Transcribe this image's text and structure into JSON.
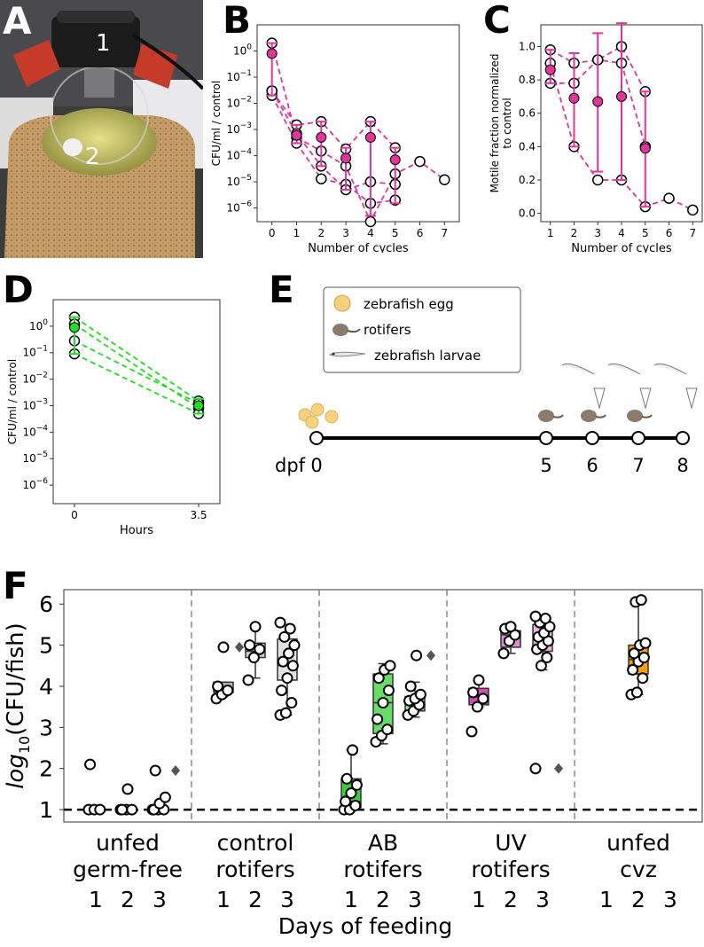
{
  "panel_labels": {
    "a": "A",
    "b": "B",
    "c": "C",
    "d": "D",
    "e": "E",
    "f": "F"
  },
  "photo": {
    "marker1": "1",
    "marker2": "2"
  },
  "chart_data": [
    {
      "id": "B",
      "type": "line",
      "scale": "log",
      "xlabel": "Number of cycles",
      "ylabel": "CFU/ml / control",
      "xticks": [
        0,
        1,
        2,
        3,
        4,
        5,
        6,
        7
      ],
      "yticks": [
        {
          "v": 1,
          "l": "10^0"
        },
        {
          "v": 0.1,
          "l": "10^-1"
        },
        {
          "v": 0.01,
          "l": "10^-2"
        },
        {
          "v": 0.001,
          "l": "10^-3"
        },
        {
          "v": 0.0001,
          "l": "10^-4"
        },
        {
          "v": 1e-05,
          "l": "10^-5"
        },
        {
          "v": 1e-06,
          "l": "10^-6"
        }
      ],
      "xlim": [
        -0.6,
        7.6
      ],
      "ylim": [
        3e-07,
        10
      ],
      "color": "#e0359a",
      "series": [
        {
          "x": [
            0,
            1,
            2,
            3,
            4,
            5,
            6,
            7
          ],
          "values": [
            2.0,
            0.0005,
            0.00015,
            4e-05,
            3e-07,
            2e-05,
            6e-05,
            1.2e-05
          ]
        },
        {
          "x": [
            0,
            1,
            2,
            3,
            4,
            5
          ],
          "values": [
            0.03,
            0.0015,
            0.002,
            0.00018,
            0.002,
            0.0002
          ]
        },
        {
          "x": [
            0,
            1,
            2,
            3,
            4,
            5
          ],
          "values": [
            0.02,
            0.0003,
            1.3e-05,
            8e-06,
            1.5e-06,
            2e-06
          ]
        },
        {
          "x": [
            0,
            1,
            2,
            3,
            4,
            5
          ],
          "values": [
            0.03,
            0.0007,
            4e-05,
            5e-06,
            1e-05,
            8e-06
          ]
        }
      ],
      "means": {
        "x": [
          0,
          1,
          2,
          3,
          4,
          5
        ],
        "values": [
          0.8,
          0.0006,
          0.0005,
          8e-05,
          0.0005,
          7e-05
        ],
        "lo": [
          0.02,
          0.0003,
          4e-05,
          5e-06,
          5e-07,
          1.5e-06
        ],
        "hi": [
          2,
          0.0015,
          0.002,
          0.0002,
          0.002,
          0.0002
        ]
      }
    },
    {
      "id": "C",
      "type": "line",
      "scale": "linear",
      "xlabel": "Number of cycles",
      "ylabel": "Motile fraction normalized to control",
      "ylabel_lines": [
        "Motile fraction normalized",
        "to control"
      ],
      "xticks": [
        1,
        2,
        3,
        4,
        5,
        6,
        7
      ],
      "yticks": [
        {
          "v": 0,
          "l": "0.0"
        },
        {
          "v": 0.2,
          "l": "0.2"
        },
        {
          "v": 0.4,
          "l": "0.4"
        },
        {
          "v": 0.6,
          "l": "0.6"
        },
        {
          "v": 0.8,
          "l": "0.8"
        },
        {
          "v": 1.0,
          "l": "1.0"
        }
      ],
      "xlim": [
        0.6,
        7.4
      ],
      "ylim": [
        -0.05,
        1.13
      ],
      "color": "#e0359a",
      "series": [
        {
          "x": [
            1,
            2,
            3,
            4,
            5,
            6,
            7
          ],
          "values": [
            0.9,
            0.4,
            0.2,
            0.2,
            0.04,
            0.09,
            0.02
          ]
        },
        {
          "x": [
            1,
            2,
            3,
            4,
            5
          ],
          "values": [
            0.98,
            0.9,
            0.92,
            1.0,
            0.73
          ]
        },
        {
          "x": [
            1,
            2,
            3,
            4,
            5
          ],
          "values": [
            0.78,
            0.78,
            0.92,
            0.9,
            0.4
          ]
        }
      ],
      "means": {
        "x": [
          1,
          2,
          3,
          4,
          5
        ],
        "values": [
          0.86,
          0.69,
          0.67,
          0.7,
          0.39
        ],
        "lo": [
          0.78,
          0.4,
          0.25,
          0.2,
          0.04
        ],
        "hi": [
          0.98,
          0.96,
          1.08,
          1.14,
          0.73
        ]
      }
    },
    {
      "id": "D",
      "type": "line",
      "scale": "log",
      "xlabel": "Hours",
      "ylabel": "CFU/ml / control",
      "xticks": [
        {
          "v": 0,
          "l": "0"
        },
        {
          "v": 3.5,
          "l": "3.5"
        }
      ],
      "yticks": [
        {
          "v": 1,
          "l": "10^0"
        },
        {
          "v": 0.1,
          "l": "10^-1"
        },
        {
          "v": 0.01,
          "l": "10^-2"
        },
        {
          "v": 0.001,
          "l": "10^-3"
        },
        {
          "v": 0.0001,
          "l": "10^-4"
        },
        {
          "v": 1e-05,
          "l": "10^-5"
        },
        {
          "v": 1e-06,
          "l": "10^-6"
        }
      ],
      "xlim": [
        -0.6,
        4.1
      ],
      "ylim": [
        2e-07,
        10
      ],
      "color": "#22dd22",
      "series": [
        {
          "x": [
            0,
            3.5
          ],
          "values": [
            2.2,
            0.0015
          ]
        },
        {
          "x": [
            0,
            3.5
          ],
          "values": [
            1.2,
            0.0008
          ]
        },
        {
          "x": [
            0,
            3.5
          ],
          "values": [
            0.28,
            0.0012
          ]
        },
        {
          "x": [
            0,
            3.5
          ],
          "values": [
            0.09,
            0.0005
          ]
        }
      ],
      "means": {
        "x": [
          0,
          3.5
        ],
        "values": [
          0.9,
          0.001
        ],
        "lo": [
          0.09,
          0.0005
        ],
        "hi": [
          2.2,
          0.0018
        ]
      }
    },
    {
      "id": "F",
      "type": "box",
      "ylabel": "log10(CFU/fish)",
      "xlabel": "Days of feeding",
      "ylim": [
        0.7,
        6.35
      ],
      "yticks": [
        1,
        2,
        3,
        4,
        5,
        6
      ],
      "group_labels": [
        [
          "unfed",
          "germ-free"
        ],
        [
          "control",
          "rotifers"
        ],
        [
          "AB",
          "rotifers"
        ],
        [
          "UV",
          "rotifers"
        ],
        [
          "unfed",
          "cvz"
        ]
      ],
      "day_labels": [
        "1",
        "2",
        "3"
      ],
      "boxes": [
        {
          "g": 0,
          "d": 1,
          "q1": 1,
          "med": 1,
          "q3": 1,
          "wlo": 1,
          "whi": 1,
          "fliers": [],
          "pts": [
            1,
            1,
            1,
            2.1
          ],
          "color": "#9e9e9e"
        },
        {
          "g": 0,
          "d": 2,
          "q1": 1,
          "med": 1,
          "q3": 1,
          "wlo": 1,
          "whi": 1,
          "fliers": [],
          "pts": [
            1,
            1,
            1,
            1,
            1.5
          ],
          "color": "#9e9e9e"
        },
        {
          "g": 0,
          "d": 3,
          "q1": 1,
          "med": 1,
          "q3": 1,
          "wlo": 1,
          "whi": 1,
          "fliers": [
            1.95
          ],
          "pts": [
            1,
            1,
            1,
            1,
            1.15,
            1.3,
            1.95
          ],
          "color": "#9e9e9e"
        },
        {
          "g": 1,
          "d": 1,
          "q1": 3.85,
          "med": 3.95,
          "q3": 4.1,
          "wlo": 3.75,
          "whi": 4.1,
          "fliers": [
            4.95
          ],
          "pts": [
            3.7,
            3.8,
            3.9,
            4.0,
            4.95
          ],
          "color": "#b8b8b8"
        },
        {
          "g": 1,
          "d": 2,
          "q1": 4.7,
          "med": 4.85,
          "q3": 5.05,
          "wlo": 4.2,
          "whi": 5.45,
          "fliers": [],
          "pts": [
            4.15,
            4.7,
            4.9,
            5.0,
            5.45
          ],
          "color": "#d2d2d2"
        },
        {
          "g": 1,
          "d": 3,
          "q1": 4.15,
          "med": 4.5,
          "q3": 5.15,
          "wlo": 3.3,
          "whi": 5.5,
          "fliers": [],
          "pts": [
            3.3,
            3.35,
            3.6,
            3.9,
            4.2,
            4.5,
            4.6,
            4.8,
            5.0,
            5.2,
            5.4,
            5.55
          ],
          "color": "#e2e2e2"
        },
        {
          "g": 2,
          "d": 1,
          "q1": 1.05,
          "med": 1.2,
          "q3": 1.75,
          "wlo": 1,
          "whi": 2.45,
          "fliers": [],
          "pts": [
            1,
            1,
            1.1,
            1.2,
            1.4,
            1.6,
            1.75,
            2.45
          ],
          "color": "#3ecc3e"
        },
        {
          "g": 2,
          "d": 2,
          "q1": 2.85,
          "med": 3.6,
          "q3": 4.3,
          "wlo": 2.6,
          "whi": 4.55,
          "fliers": [],
          "pts": [
            2.65,
            2.8,
            2.95,
            3.2,
            3.6,
            3.9,
            4.2,
            4.4,
            4.5
          ],
          "color": "#66dd66"
        },
        {
          "g": 2,
          "d": 3,
          "q1": 3.4,
          "med": 3.6,
          "q3": 3.75,
          "wlo": 3.25,
          "whi": 4.1,
          "fliers": [
            4.75
          ],
          "pts": [
            3.3,
            3.4,
            3.55,
            3.65,
            3.7,
            3.8,
            4.0,
            4.75
          ],
          "color": "#99e699"
        },
        {
          "g": 3,
          "d": 1,
          "q1": 3.55,
          "med": 3.75,
          "q3": 3.95,
          "wlo": 3.5,
          "whi": 4.15,
          "fliers": [],
          "pts": [
            2.9,
            3.5,
            3.7,
            3.85,
            4.15
          ],
          "color": "#d548b8"
        },
        {
          "g": 3,
          "d": 2,
          "q1": 4.95,
          "med": 5.25,
          "q3": 5.35,
          "wlo": 4.8,
          "whi": 5.45,
          "fliers": [],
          "pts": [
            4.8,
            5.1,
            5.25,
            5.4,
            5.45
          ],
          "color": "#e08ad0"
        },
        {
          "g": 3,
          "d": 3,
          "q1": 4.85,
          "med": 5.15,
          "q3": 5.5,
          "wlo": 4.4,
          "whi": 5.7,
          "fliers": [
            2.0
          ],
          "pts": [
            2.0,
            4.5,
            4.7,
            4.9,
            5.0,
            5.1,
            5.2,
            5.3,
            5.45,
            5.55,
            5.65,
            5.7
          ],
          "color": "#f0b0e4"
        },
        {
          "g": 4,
          "d": 2,
          "q1": 4.3,
          "med": 4.65,
          "q3": 5.0,
          "wlo": 3.8,
          "whi": 6.1,
          "fliers": [],
          "pts": [
            3.8,
            3.85,
            4.2,
            4.4,
            4.6,
            4.7,
            4.8,
            5.0,
            5.05,
            6.05,
            6.1
          ],
          "color": "#f5a00a"
        }
      ]
    }
  ],
  "schematic": {
    "legend": {
      "egg": "zebrafish egg",
      "rotifers": "rotifers",
      "larvae": "zebrafish larvae"
    },
    "axis_label": "dpf",
    "timeline_points": [
      "0",
      "5",
      "6",
      "7",
      "8"
    ]
  }
}
